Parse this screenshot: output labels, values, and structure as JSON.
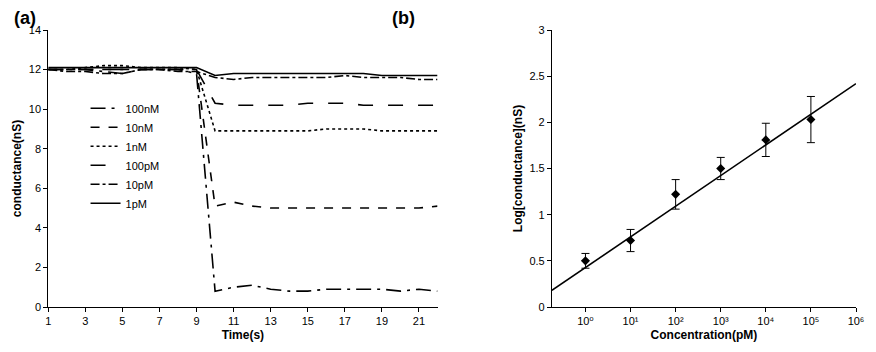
{
  "chart_data": [
    {
      "type": "line",
      "title": "(a)",
      "x_label": "Time(s)",
      "y_label": "conductance(nS)",
      "x": [
        1,
        2,
        3,
        4,
        5,
        6,
        7,
        8,
        9,
        10,
        11,
        12,
        13,
        14,
        15,
        16,
        17,
        18,
        19,
        20,
        21,
        22
      ],
      "xlim": [
        1,
        22
      ],
      "xticks": [
        1,
        3,
        5,
        7,
        9,
        11,
        13,
        15,
        17,
        19,
        21
      ],
      "ylim": [
        0,
        14
      ],
      "yticks": [
        0,
        2,
        4,
        6,
        8,
        10,
        12,
        14
      ],
      "grid": false,
      "legend": "upper left",
      "series": [
        {
          "name": "100nM",
          "color": "#000000",
          "line_style": "longdashdot",
          "values": [
            12,
            12,
            12,
            11.9,
            11.8,
            12,
            12,
            12,
            11.8,
            0.8,
            1.0,
            1.1,
            0.9,
            0.8,
            0.8,
            0.9,
            0.9,
            0.9,
            0.9,
            0.8,
            0.9,
            0.8
          ]
        },
        {
          "name": "10nM",
          "color": "#000000",
          "line_style": "dash",
          "values": [
            12,
            12,
            12,
            12,
            12,
            12,
            12,
            12,
            12,
            5.1,
            5.3,
            5.1,
            5.0,
            5.0,
            5.0,
            5.0,
            5.0,
            5.0,
            5.0,
            5.0,
            5.0,
            5.1
          ]
        },
        {
          "name": "1nM",
          "color": "#000000",
          "line_style": "dot",
          "values": [
            12,
            12,
            12.1,
            12.2,
            12.2,
            12.1,
            12.1,
            12.1,
            12.0,
            8.9,
            8.9,
            8.9,
            8.9,
            8.9,
            8.9,
            9.0,
            9.0,
            9.0,
            8.9,
            8.9,
            8.9,
            8.9
          ]
        },
        {
          "name": "100pM",
          "color": "#000000",
          "line_style": "longdash",
          "values": [
            12,
            12,
            12,
            12,
            12,
            12,
            12,
            12,
            12,
            10.3,
            10.2,
            10.2,
            10.2,
            10.2,
            10.3,
            10.3,
            10.3,
            10.2,
            10.2,
            10.2,
            10.2,
            10.2
          ]
        },
        {
          "name": "10pM",
          "color": "#000000",
          "line_style": "dashdot",
          "values": [
            12,
            11.9,
            11.9,
            11.8,
            11.8,
            12,
            12,
            11.9,
            11.9,
            11.6,
            11.5,
            11.6,
            11.6,
            11.6,
            11.6,
            11.6,
            11.7,
            11.6,
            11.6,
            11.6,
            11.5,
            11.5
          ]
        },
        {
          "name": "1pM",
          "color": "#000000",
          "line_style": "solid",
          "values": [
            12.1,
            12.1,
            12.1,
            12.1,
            12.1,
            12.1,
            12.1,
            12.1,
            12.1,
            11.7,
            11.8,
            11.8,
            11.8,
            11.8,
            11.8,
            11.8,
            11.8,
            11.8,
            11.7,
            11.7,
            11.7,
            11.7
          ]
        }
      ]
    },
    {
      "type": "scatter",
      "title": "(b)",
      "x_label": "Concentration(pM)",
      "y_label": "Log[conductance](nS)",
      "log": "x",
      "grid": false,
      "xlim": [
        0.18,
        1000000
      ],
      "xticks": [
        {
          "value": 1,
          "label": "10⁰"
        },
        {
          "value": 10,
          "label": "10¹"
        },
        {
          "value": 100,
          "label": "10²"
        },
        {
          "value": 1000,
          "label": "10³"
        },
        {
          "value": 10000,
          "label": "10⁴"
        },
        {
          "value": 100000,
          "label": "10⁵"
        },
        {
          "value": 1000000,
          "label": "10⁶"
        }
      ],
      "ylim": [
        0,
        3
      ],
      "yticks": [
        0,
        0.5,
        1,
        1.5,
        2,
        2.5,
        3
      ],
      "series": [
        {
          "type": "scatter",
          "color": "#000000",
          "marker": "diamond",
          "x": [
            1,
            10,
            100,
            1000,
            10000,
            100000
          ],
          "values": [
            0.5,
            0.72,
            1.22,
            1.5,
            1.81,
            2.03
          ],
          "error": [
            0.08,
            0.12,
            0.16,
            0.12,
            0.18,
            0.25
          ]
        },
        {
          "type": "line",
          "color": "#000000",
          "line_style": "solid",
          "x": [
            0.18,
            1000000
          ],
          "values": [
            0.18,
            2.42
          ]
        }
      ]
    }
  ]
}
